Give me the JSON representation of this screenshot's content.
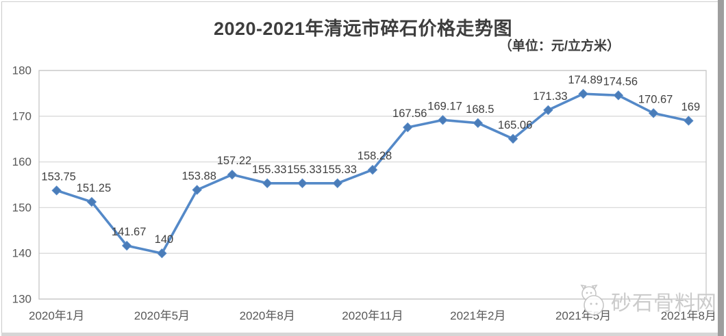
{
  "header": {
    "title": "2020-2021年清远市碎石价格走势图",
    "subtitle": "（单位：元/立方米）"
  },
  "chart_data": {
    "type": "line",
    "title": "2020-2021年清远市碎石价格走势图",
    "unit_label": "（单位：元/立方米）",
    "n_points": 19,
    "values": [
      153.75,
      151.25,
      141.67,
      140,
      153.88,
      157.22,
      155.33,
      155.33,
      155.33,
      158.28,
      167.56,
      169.17,
      168.5,
      165.06,
      171.33,
      174.89,
      174.56,
      170.67,
      169
    ],
    "data_labels": [
      "153.75",
      "151.25",
      "141.67",
      "140",
      "153.88",
      "157.22",
      "155.33",
      "155.33",
      "155.33",
      "158.28",
      "167.56",
      "169.17",
      "168.5",
      "165.06",
      "171.33",
      "174.89",
      "174.56",
      "170.67",
      "169"
    ],
    "x_tick_labels": [
      "2020年1月",
      "2020年5月",
      "2020年8月",
      "2020年11月",
      "2021年2月",
      "2021年5月",
      "2021年8月"
    ],
    "x_tick_indices": [
      0,
      3,
      6,
      9,
      12,
      15,
      18
    ],
    "y_ticks": [
      130,
      140,
      150,
      160,
      170,
      180
    ],
    "ylim": [
      130,
      180
    ],
    "grid": true,
    "legend": "none",
    "marker": "diamond",
    "colors": {
      "line": "#5489C8",
      "marker": "#4A7CB8",
      "grid": "#d9d9d9",
      "plot_border": "#c6c6c6",
      "axis_text": "#595959",
      "value_label_text": "#404040"
    }
  },
  "watermark": {
    "text": "砂石骨料网",
    "icon": "mascot-logo"
  }
}
